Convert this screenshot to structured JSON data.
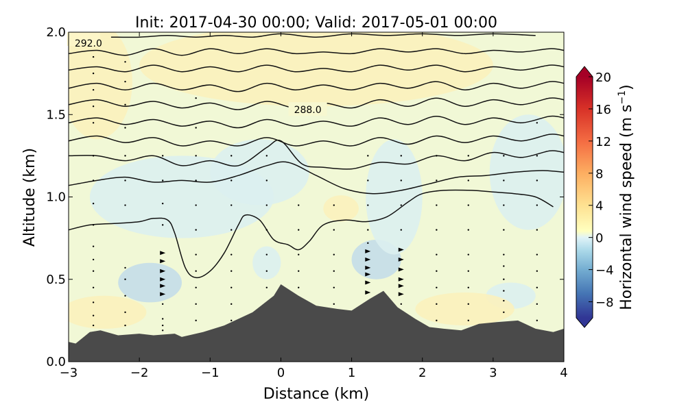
{
  "chart_data": {
    "type": "heatmap",
    "title": "Init: 2017-04-30 00:00; Valid: 2017-05-01 00:00",
    "xlabel": "Distance (km)",
    "ylabel": "Altitude (km)",
    "xlim": [
      -3,
      4
    ],
    "ylim": [
      0.0,
      2.0
    ],
    "x_ticks": [
      -3,
      -2,
      -1,
      0,
      1,
      2,
      3,
      4
    ],
    "y_ticks": [
      0.0,
      0.5,
      1.0,
      1.5,
      2.0
    ],
    "x_tick_labels": [
      "−3",
      "−2",
      "−1",
      "0",
      "1",
      "2",
      "3",
      "4"
    ],
    "y_tick_labels": [
      "0.0",
      "0.5",
      "1.0",
      "1.5",
      "2.0"
    ],
    "colorbar": {
      "label_main": "Horizontal wind speed (m s",
      "label_exp": "−1",
      "label_close": ")",
      "range": [
        -10,
        20
      ],
      "ticks": [
        -8,
        -4,
        0,
        4,
        8,
        12,
        16,
        20
      ],
      "tick_labels": [
        "−8",
        "−4",
        "0",
        "4",
        "8",
        "12",
        "16",
        "20"
      ],
      "colormap": "RdYlBu_r",
      "extend": "both"
    },
    "contour_labels": [
      {
        "text": "292.0",
        "x": -2.72,
        "y": 1.95
      },
      {
        "text": "288.0",
        "x": 0.38,
        "y": 1.55
      }
    ],
    "terrain": {
      "color": "#4a4a4a",
      "x": [
        -3.0,
        -2.9,
        -2.7,
        -2.55,
        -2.3,
        -2.0,
        -1.8,
        -1.5,
        -1.4,
        -1.1,
        -0.8,
        -0.4,
        -0.1,
        0.0,
        0.25,
        0.5,
        0.8,
        1.0,
        1.25,
        1.45,
        1.65,
        1.9,
        2.1,
        2.3,
        2.55,
        2.8,
        3.05,
        3.35,
        3.6,
        3.85,
        4.0
      ],
      "y": [
        0.12,
        0.11,
        0.18,
        0.19,
        0.16,
        0.17,
        0.16,
        0.17,
        0.15,
        0.18,
        0.22,
        0.3,
        0.4,
        0.47,
        0.4,
        0.34,
        0.32,
        0.31,
        0.38,
        0.43,
        0.33,
        0.26,
        0.21,
        0.2,
        0.19,
        0.23,
        0.24,
        0.25,
        0.2,
        0.18,
        0.2
      ]
    },
    "theta_contours": [
      {
        "x": [
          -2.4,
          -2.0,
          -1.6,
          -1.2,
          -0.8,
          -0.4,
          0.0,
          0.5,
          1.0,
          1.5,
          2.0,
          2.5,
          3.0,
          3.6
        ],
        "y": [
          1.97,
          1.97,
          1.98,
          1.97,
          1.98,
          1.97,
          1.99,
          1.97,
          1.99,
          1.98,
          1.99,
          1.98,
          1.99,
          1.98
        ]
      },
      {
        "x": [
          -3.0,
          -2.6,
          -2.2,
          -1.8,
          -1.4,
          -1.0,
          -0.6,
          -0.2,
          0.2,
          0.6,
          1.0,
          1.4,
          1.8,
          2.2,
          2.6,
          3.0,
          3.4,
          3.8,
          4.0
        ],
        "y": [
          1.87,
          1.89,
          1.86,
          1.9,
          1.86,
          1.9,
          1.87,
          1.9,
          1.87,
          1.88,
          1.87,
          1.9,
          1.88,
          1.9,
          1.87,
          1.89,
          1.88,
          1.9,
          1.89
        ]
      },
      {
        "x": [
          -3.0,
          -2.6,
          -2.2,
          -1.8,
          -1.4,
          -1.0,
          -0.6,
          -0.2,
          0.2,
          0.6,
          1.0,
          1.4,
          1.8,
          2.2,
          2.6,
          3.0,
          3.4,
          3.8,
          4.0
        ],
        "y": [
          1.77,
          1.79,
          1.76,
          1.8,
          1.76,
          1.79,
          1.76,
          1.8,
          1.76,
          1.78,
          1.76,
          1.8,
          1.77,
          1.8,
          1.76,
          1.79,
          1.77,
          1.8,
          1.79
        ]
      },
      {
        "x": [
          -3.0,
          -2.6,
          -2.2,
          -1.8,
          -1.4,
          -1.0,
          -0.6,
          -0.2,
          0.2,
          0.6,
          1.0,
          1.4,
          1.8,
          2.2,
          2.6,
          3.0,
          3.4,
          3.8,
          4.0
        ],
        "y": [
          1.66,
          1.69,
          1.65,
          1.69,
          1.65,
          1.68,
          1.64,
          1.69,
          1.65,
          1.68,
          1.65,
          1.69,
          1.66,
          1.7,
          1.65,
          1.69,
          1.66,
          1.7,
          1.69
        ]
      },
      {
        "x": [
          -3.0,
          -2.6,
          -2.2,
          -1.8,
          -1.4,
          -1.0,
          -0.6,
          -0.2,
          0.2,
          0.6,
          1.0,
          1.4,
          1.8,
          2.2,
          2.6,
          3.0,
          3.4,
          3.8,
          4.0
        ],
        "y": [
          1.56,
          1.59,
          1.55,
          1.58,
          1.54,
          1.57,
          1.53,
          1.58,
          1.54,
          1.57,
          1.54,
          1.59,
          1.55,
          1.6,
          1.55,
          1.59,
          1.56,
          1.6,
          1.59
        ]
      },
      {
        "x": [
          -3.0,
          -2.6,
          -2.2,
          -1.8,
          -1.4,
          -1.0,
          -0.6,
          -0.2,
          0.2,
          0.6,
          1.0,
          1.4,
          1.8,
          2.2,
          2.6,
          3.0,
          3.4,
          3.8,
          4.0
        ],
        "y": [
          1.45,
          1.48,
          1.44,
          1.47,
          1.43,
          1.46,
          1.42,
          1.47,
          1.43,
          1.46,
          1.43,
          1.48,
          1.44,
          1.49,
          1.44,
          1.48,
          1.45,
          1.49,
          1.48
        ]
      },
      {
        "x": [
          -3.0,
          -2.6,
          -2.2,
          -1.8,
          -1.4,
          -1.0,
          -0.6,
          -0.2,
          0.2,
          0.6,
          1.0,
          1.4,
          1.8,
          2.2,
          2.6,
          3.0,
          3.4,
          3.8,
          4.0
        ],
        "y": [
          1.34,
          1.37,
          1.33,
          1.36,
          1.31,
          1.34,
          1.31,
          1.36,
          1.31,
          1.34,
          1.31,
          1.36,
          1.32,
          1.37,
          1.33,
          1.37,
          1.34,
          1.38,
          1.37
        ]
      },
      {
        "x": [
          -3.0,
          -2.6,
          -2.2,
          -1.8,
          -1.4,
          -1.0,
          -0.6,
          -0.2,
          0.0,
          0.3,
          0.6,
          1.0,
          1.4,
          1.8,
          2.2,
          2.6,
          3.0,
          3.4,
          3.8,
          4.0
        ],
        "y": [
          1.25,
          1.25,
          1.22,
          1.25,
          1.19,
          1.22,
          1.19,
          1.3,
          1.34,
          1.2,
          1.18,
          1.17,
          1.21,
          1.2,
          1.25,
          1.22,
          1.27,
          1.24,
          1.28,
          1.27
        ]
      },
      {
        "x": [
          -3.0,
          -2.6,
          -2.2,
          -1.8,
          -1.4,
          -1.0,
          -0.6,
          -0.2,
          0.1,
          0.5,
          0.9,
          1.3,
          1.7,
          2.1,
          2.5,
          2.9,
          3.3,
          3.7,
          4.0
        ],
        "y": [
          1.07,
          1.1,
          1.12,
          1.09,
          1.1,
          1.09,
          1.13,
          1.19,
          1.21,
          1.13,
          1.05,
          1.02,
          1.04,
          1.08,
          1.12,
          1.13,
          1.15,
          1.16,
          1.15
        ]
      },
      {
        "x": [
          -3.0,
          -2.7,
          -2.3,
          -2.0,
          -1.8,
          -1.6,
          -1.5,
          -1.35,
          -1.2,
          -1.0,
          -0.8,
          -0.6,
          -0.5,
          -0.3,
          -0.1,
          0.1,
          0.25,
          0.4,
          0.6,
          0.9,
          1.2,
          1.5,
          1.8,
          2.0,
          2.3,
          2.7,
          3.0,
          3.3,
          3.6,
          3.85
        ],
        "y": [
          0.8,
          0.83,
          0.84,
          0.85,
          0.87,
          0.86,
          0.78,
          0.57,
          0.51,
          0.55,
          0.66,
          0.83,
          0.89,
          0.86,
          0.74,
          0.71,
          0.68,
          0.73,
          0.83,
          0.86,
          0.85,
          0.88,
          0.97,
          1.02,
          1.04,
          1.04,
          1.03,
          1.02,
          1.0,
          0.94
        ]
      }
    ],
    "wind_columns": [
      {
        "x": -2.65,
        "y": [
          0.22,
          0.28,
          0.36,
          0.45,
          0.55,
          0.62,
          0.7,
          0.83,
          0.96,
          1.1,
          1.25,
          1.45,
          1.55,
          1.65,
          1.75,
          1.85
        ]
      },
      {
        "x": -2.2,
        "y": [
          0.22,
          0.3,
          0.4,
          0.5,
          0.57,
          0.95,
          1.1,
          1.25,
          1.42,
          1.56,
          1.7,
          1.82
        ]
      },
      {
        "x": -1.67,
        "y": [
          0.19,
          0.22,
          0.26,
          0.35,
          0.41,
          0.46,
          0.5,
          0.55,
          0.61,
          0.66,
          0.83,
          0.96,
          1.1,
          1.25
        ]
      },
      {
        "x": -1.2,
        "y": [
          0.25,
          0.35,
          0.45,
          0.55,
          0.65,
          0.8,
          0.95,
          1.1,
          1.25,
          1.42,
          1.6
        ]
      },
      {
        "x": -0.7,
        "y": [
          0.25,
          0.35,
          0.45,
          0.55,
          0.65,
          0.8,
          0.95,
          1.1,
          1.25
        ]
      },
      {
        "x": -0.2,
        "y": [
          0.45,
          0.55,
          0.65,
          0.8,
          0.95,
          1.1,
          1.25
        ]
      },
      {
        "x": 0.25,
        "y": [
          0.45,
          0.55,
          0.65,
          0.8,
          0.95
        ]
      },
      {
        "x": 0.75,
        "y": [
          0.35,
          0.45,
          0.55,
          0.65,
          0.8,
          0.95
        ]
      },
      {
        "x": 1.23,
        "y": [
          0.42,
          0.48,
          0.53,
          0.57,
          0.62,
          0.67,
          0.72,
          0.8,
          0.95,
          1.1,
          1.25
        ]
      },
      {
        "x": 1.7,
        "y": [
          0.3,
          0.35,
          0.41,
          0.46,
          0.5,
          0.56,
          0.62,
          0.68,
          0.8,
          0.95,
          1.1,
          1.25
        ]
      },
      {
        "x": 2.2,
        "y": [
          0.25,
          0.35,
          0.45,
          0.55,
          0.65,
          0.8,
          0.95,
          1.1,
          1.25
        ]
      },
      {
        "x": 2.65,
        "y": [
          0.25,
          0.35,
          0.45,
          0.55,
          0.65,
          0.8,
          0.95,
          1.1,
          1.25
        ]
      },
      {
        "x": 3.15,
        "y": [
          0.3,
          0.37,
          0.43,
          0.5,
          0.58,
          0.65,
          0.8,
          0.95,
          1.1,
          1.25
        ]
      },
      {
        "x": 3.62,
        "y": [
          0.25,
          0.35,
          0.45,
          0.55,
          0.65,
          0.8,
          0.95,
          1.1,
          1.25,
          1.45
        ]
      }
    ],
    "wind_field_regions": [
      {
        "cx": -1.85,
        "cy": 0.48,
        "rx": 0.45,
        "ry": 0.12,
        "value": -3
      },
      {
        "cx": -1.4,
        "cy": 1.0,
        "rx": 1.3,
        "ry": 0.25,
        "value": -1
      },
      {
        "cx": -0.3,
        "cy": 1.15,
        "rx": 0.7,
        "ry": 0.2,
        "value": -1
      },
      {
        "cx": 1.35,
        "cy": 0.62,
        "rx": 0.35,
        "ry": 0.12,
        "value": -3
      },
      {
        "cx": 1.6,
        "cy": 1.0,
        "rx": 0.4,
        "ry": 0.35,
        "value": -1
      },
      {
        "cx": 3.5,
        "cy": 1.15,
        "rx": 0.55,
        "ry": 0.35,
        "value": -1
      },
      {
        "cx": 3.25,
        "cy": 0.4,
        "rx": 0.35,
        "ry": 0.08,
        "value": -1
      },
      {
        "cx": -0.2,
        "cy": 0.6,
        "rx": 0.2,
        "ry": 0.1,
        "value": -1
      },
      {
        "cx": 0.85,
        "cy": 0.93,
        "rx": 0.25,
        "ry": 0.08,
        "value": 2
      },
      {
        "cx": -2.6,
        "cy": 1.7,
        "rx": 0.5,
        "ry": 0.35,
        "value": 2
      },
      {
        "cx": 0.5,
        "cy": 1.8,
        "rx": 2.5,
        "ry": 0.25,
        "value": 2
      },
      {
        "cx": -2.5,
        "cy": 0.3,
        "rx": 0.6,
        "ry": 0.1,
        "value": 2
      },
      {
        "cx": 2.6,
        "cy": 0.32,
        "rx": 0.7,
        "ry": 0.1,
        "value": 2
      }
    ]
  }
}
